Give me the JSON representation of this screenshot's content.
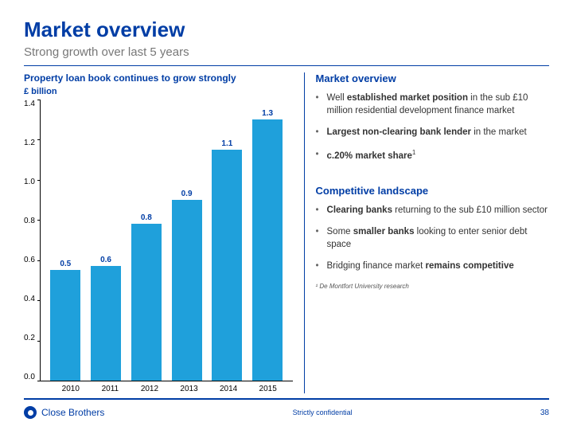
{
  "colors": {
    "brand_blue": "#003da5",
    "bar_blue": "#1fa0db",
    "subtitle_gray": "#777777",
    "divider_top": "#003da5",
    "divider_bot": "#003da5",
    "right_border": "#003da5"
  },
  "header": {
    "title": "Market overview",
    "subtitle": "Strong growth over last 5 years"
  },
  "chart": {
    "title": "Property loan book continues to grow strongly",
    "y_label": "£ billion",
    "type": "bar",
    "categories": [
      "2010",
      "2011",
      "2012",
      "2013",
      "2014",
      "2015"
    ],
    "values": [
      0.55,
      0.57,
      0.78,
      0.9,
      1.15,
      1.3
    ],
    "value_labels": [
      "0.5",
      "0.6",
      "0.8",
      "0.9",
      "1.1",
      "1.3"
    ],
    "bar_color": "#1fa0db",
    "ylim": [
      0.0,
      1.4
    ],
    "ytick_step": 0.2,
    "yticks": [
      "1.4",
      "1.2",
      "1.0",
      "0.8",
      "0.6",
      "0.4",
      "0.2",
      "0.0"
    ],
    "label_color": "#003da5",
    "label_fontsize": 10,
    "grid": false,
    "background": "#ffffff"
  },
  "right_panel": {
    "section1": {
      "heading": "Market overview",
      "bullets": [
        "Well <b>established market position</b> in the sub £10 million residential development finance market",
        "<b>Largest non-clearing bank lender</b> in the market",
        "<b>c.20% market share</b><sup>1</sup>"
      ]
    },
    "section2": {
      "heading": "Competitive landscape",
      "bullets": [
        "<b>Clearing banks</b> returning to the sub £10 million sector",
        "Some <b>smaller banks</b> looking to enter senior debt space",
        "Bridging finance market <b>remains competitive</b>"
      ]
    },
    "footnote": "¹ De Montfort University research"
  },
  "footer": {
    "brand": "Close Brothers",
    "confidential": "Strictly confidential",
    "page": "38"
  }
}
